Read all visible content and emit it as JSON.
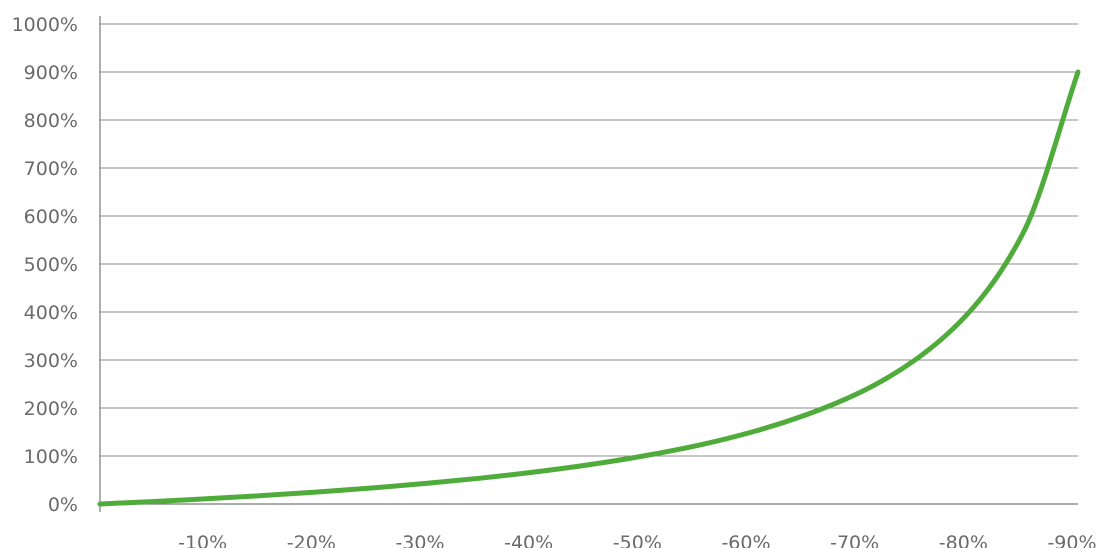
{
  "chart_data": {
    "type": "line",
    "title": "",
    "xlabel": "",
    "ylabel": "",
    "x": [
      0,
      -5,
      -10,
      -15,
      -20,
      -25,
      -30,
      -35,
      -40,
      -45,
      -50,
      -55,
      -60,
      -65,
      -70,
      -75,
      -80,
      -85,
      -90
    ],
    "series": [
      {
        "values": [
          0,
          5.26,
          11.1,
          17.6,
          25,
          33.3,
          42.9,
          53.8,
          66.7,
          81.8,
          100,
          122,
          150,
          186,
          233,
          300,
          400,
          567,
          900
        ],
        "color": "#4fac3a"
      }
    ],
    "xlim": [
      0,
      -90
    ],
    "ylim": [
      0,
      1000
    ],
    "x_ticks": [
      -10,
      -20,
      -30,
      -40,
      -50,
      -60,
      -70,
      -80,
      -90
    ],
    "y_ticks": [
      0,
      100,
      200,
      300,
      400,
      500,
      600,
      700,
      800,
      900,
      1000
    ],
    "x_tick_labels": [
      "-10%",
      "-20%",
      "-30%",
      "-40%",
      "-50%",
      "-60%",
      "-70%",
      "-80%",
      "-90%"
    ],
    "y_tick_labels": [
      "0%",
      "100%",
      "200%",
      "300%",
      "400%",
      "500%",
      "600%",
      "700%",
      "800%",
      "900%",
      "1000%"
    ],
    "grid": true,
    "legend": "none"
  }
}
